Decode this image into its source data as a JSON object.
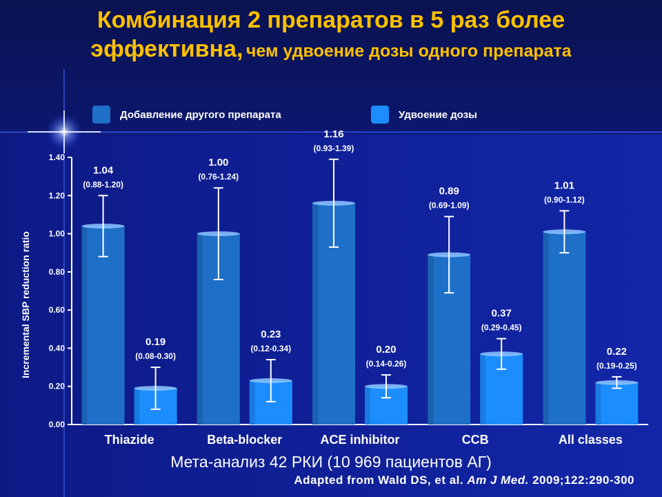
{
  "title": {
    "line1": "Комбинация 2 препаратов в 5 раз более",
    "line2_bold": "эффективна,",
    "line2_rest": "чем удвоение дозы одного препарата"
  },
  "legend": {
    "item1": "Добавление другого препарата",
    "item2": "Удвоение дозы"
  },
  "footer": {
    "line1": "Мета-анализ 42 РКИ (10 969 пациентов АГ)",
    "line2_pre": "Adapted from Wald DS, et al. ",
    "line2_journal": "Am J Med.",
    "line2_post": " 2009;122:290-300"
  },
  "colors": {
    "series1": "#1e6fc8",
    "series2": "#1c8dff",
    "text": "#ffffff",
    "title": "#ffc000"
  },
  "chart_data": {
    "type": "bar",
    "ylabel": "Incremental SBP reduction ratio",
    "ylim": [
      0,
      1.4
    ],
    "yticks": [
      "0.00",
      "0.20",
      "0.40",
      "0.60",
      "0.80",
      "1.00",
      "1.20",
      "1.40"
    ],
    "categories": [
      "Thiazide",
      "Beta-blocker",
      "ACE inhibitor",
      "CCB",
      "All classes"
    ],
    "series": [
      {
        "name": "Добавление другого препарата",
        "values": [
          1.04,
          1.0,
          1.16,
          0.89,
          1.01
        ],
        "err_low": [
          0.88,
          0.76,
          0.93,
          0.69,
          0.9
        ],
        "err_high": [
          1.2,
          1.24,
          1.39,
          1.09,
          1.12
        ],
        "labels": [
          "1.04",
          "1.00",
          "1.16",
          "0.89",
          "1.01"
        ],
        "ci_labels": [
          "(0.88-1.20)",
          "(0.76-1.24)",
          "(0.93-1.39)",
          "(0.69-1.09)",
          "(0.90-1.12)"
        ]
      },
      {
        "name": "Удвоение дозы",
        "values": [
          0.19,
          0.23,
          0.2,
          0.37,
          0.22
        ],
        "err_low": [
          0.08,
          0.12,
          0.14,
          0.29,
          0.19
        ],
        "err_high": [
          0.3,
          0.34,
          0.26,
          0.45,
          0.25
        ],
        "labels": [
          "0.19",
          "0.23",
          "0.20",
          "0.37",
          "0.22"
        ],
        "ci_labels": [
          "(0.08-0.30)",
          "(0.12-0.34)",
          "(0.14-0.26)",
          "(0.29-0.45)",
          "(0.19-0.25)"
        ]
      }
    ]
  }
}
